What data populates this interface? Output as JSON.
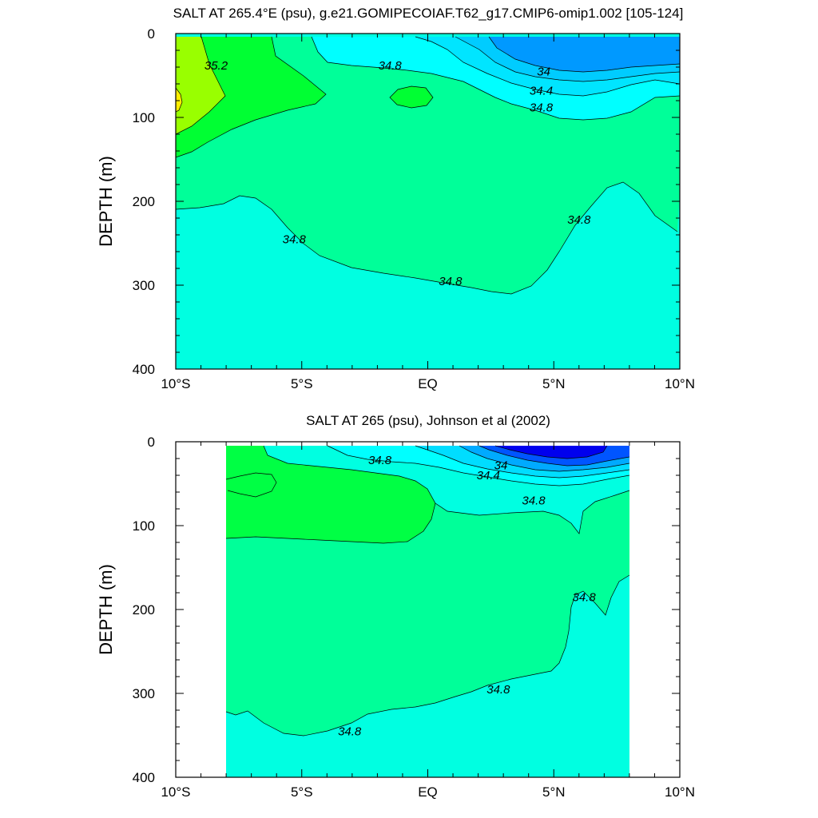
{
  "chart_data": [
    {
      "type": "contour",
      "title": "SALT AT 265.4°E (psu), g.e21.GOMIPECOIAF.T62_g17.CMIP6-omip1.002 [105-124]",
      "xlabel": "",
      "ylabel": "DEPTH (m)",
      "xlim": [
        -10,
        10
      ],
      "ylim": [
        400,
        0
      ],
      "x_tick_labels": [
        "10°S",
        "5°S",
        "EQ",
        "5°N",
        "10°N"
      ],
      "y_tick_labels": [
        "0",
        "100",
        "200",
        "300",
        "400"
      ],
      "data_extent_x": [
        -10,
        10
      ],
      "contour_labels": [
        {
          "text": "35.2",
          "x": -8.4,
          "y": 38
        },
        {
          "text": "34.8",
          "x": -1.5,
          "y": 38
        },
        {
          "text": "34",
          "x": 4.6,
          "y": 45
        },
        {
          "text": "34.4",
          "x": 4.5,
          "y": 68
        },
        {
          "text": "34.8",
          "x": 4.5,
          "y": 88
        },
        {
          "text": "34.8",
          "x": -5.3,
          "y": 245
        },
        {
          "text": "34.8",
          "x": 0.9,
          "y": 295
        },
        {
          "text": "34.8",
          "x": 6.0,
          "y": 222
        }
      ],
      "colors": {
        "s_lt_34": "#0099ff",
        "s_34_34_2": "#00ccff",
        "s_34_2_34_4": "#00e5ff",
        "s_34_4_34_6": "#00ffff",
        "s_34_6_34_8": "#00ffe1",
        "s_34_8_35_0": "#00ff99",
        "s_35_0_35_2": "#00ff33",
        "s_35_2_35_4": "#99ff00",
        "s_gt_35_4": "#ffee00"
      }
    },
    {
      "type": "contour",
      "title": "SALT AT 265 (psu), Johnson et al (2002)",
      "xlabel": "",
      "ylabel": "DEPTH (m)",
      "xlim": [
        -10,
        10
      ],
      "ylim": [
        400,
        0
      ],
      "x_tick_labels": [
        "10°S",
        "5°S",
        "EQ",
        "5°N",
        "10°N"
      ],
      "y_tick_labels": [
        "0",
        "100",
        "200",
        "300",
        "400"
      ],
      "data_extent_x": [
        -8,
        8
      ],
      "contour_labels": [
        {
          "text": "34.8",
          "x": -1.9,
          "y": 22
        },
        {
          "text": "34",
          "x": 2.9,
          "y": 28
        },
        {
          "text": "34.4",
          "x": 2.4,
          "y": 40
        },
        {
          "text": "34.8",
          "x": 4.2,
          "y": 70
        },
        {
          "text": "34.8",
          "x": 6.2,
          "y": 185
        },
        {
          "text": "34.8",
          "x": 2.8,
          "y": 295
        },
        {
          "text": "34.8",
          "x": -3.1,
          "y": 345
        }
      ],
      "colors": {
        "s_lt_33_6": "#0000ee",
        "s_33_6_34": "#0055ff",
        "s_34_34_2": "#00aaff",
        "s_34_2_34_4": "#00ddff",
        "s_34_4_34_6": "#00ffff",
        "s_34_6_34_8": "#00ffe1",
        "s_34_8_35_0": "#00ff99",
        "s_35_0_35_2": "#00ff44"
      }
    }
  ]
}
